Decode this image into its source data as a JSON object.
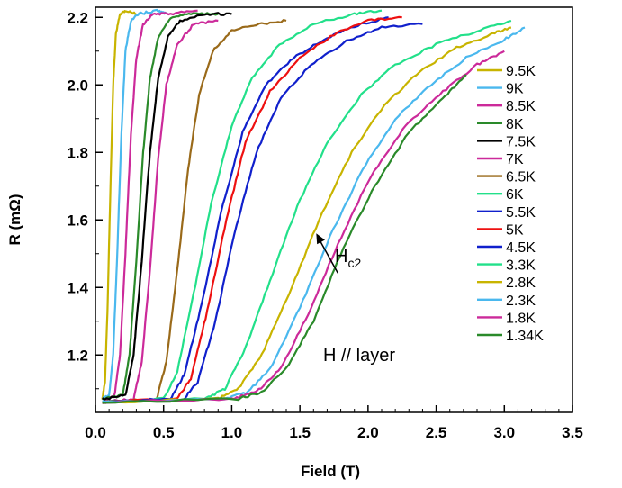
{
  "chart_data": {
    "type": "line",
    "title": "",
    "xlabel": "Field (T)",
    "ylabel": "R (mΩ)",
    "xlim": [
      0.0,
      3.5
    ],
    "ylim": [
      1.03,
      2.23
    ],
    "x_ticks": [
      "0.0",
      "0.5",
      "1.0",
      "1.5",
      "2.0",
      "2.5",
      "3.0",
      "3.5"
    ],
    "y_ticks": [
      "1.2",
      "1.4",
      "1.6",
      "1.8",
      "2.0",
      "2.2"
    ],
    "grid": false,
    "legend_position": "right",
    "annotations": {
      "hc2_label": "H",
      "hc2_sub": "c2",
      "hc2_point": [
        1.62,
        1.56
      ],
      "geometry_label": "H // layer"
    },
    "series": [
      {
        "name": "9.5K",
        "color": "#c8b400",
        "x": [
          0.05,
          0.07,
          0.09,
          0.11,
          0.13,
          0.15,
          0.18,
          0.22,
          0.3
        ],
        "y": [
          1.07,
          1.12,
          1.35,
          1.7,
          2.0,
          2.15,
          2.21,
          2.22,
          2.21
        ]
      },
      {
        "name": "9K",
        "color": "#4ab8ee",
        "x": [
          0.05,
          0.1,
          0.13,
          0.16,
          0.19,
          0.22,
          0.26,
          0.32,
          0.45,
          0.52
        ],
        "y": [
          1.07,
          1.08,
          1.2,
          1.5,
          1.85,
          2.1,
          2.19,
          2.21,
          2.22,
          2.21
        ]
      },
      {
        "name": "8.5K",
        "color": "#cc2a9a",
        "x": [
          0.05,
          0.14,
          0.18,
          0.22,
          0.26,
          0.3,
          0.35,
          0.42,
          0.55,
          0.75
        ],
        "y": [
          1.06,
          1.08,
          1.2,
          1.5,
          1.85,
          2.08,
          2.18,
          2.21,
          2.21,
          2.22
        ]
      },
      {
        "name": "8K",
        "color": "#2a8a2a",
        "x": [
          0.05,
          0.2,
          0.25,
          0.3,
          0.35,
          0.4,
          0.46,
          0.55,
          0.7,
          0.9
        ],
        "y": [
          1.07,
          1.08,
          1.2,
          1.48,
          1.8,
          2.02,
          2.14,
          2.2,
          2.21,
          2.21
        ]
      },
      {
        "name": "7.5K",
        "color": "#000000",
        "x": [
          0.05,
          0.22,
          0.28,
          0.34,
          0.4,
          0.46,
          0.53,
          0.62,
          0.8,
          1.0
        ],
        "y": [
          1.07,
          1.08,
          1.2,
          1.48,
          1.8,
          2.02,
          2.14,
          2.19,
          2.21,
          2.21
        ]
      },
      {
        "name": "7K",
        "color": "#cc2a9a",
        "x": [
          0.05,
          0.28,
          0.34,
          0.4,
          0.46,
          0.52,
          0.6,
          0.72,
          0.9
        ],
        "y": [
          1.06,
          1.07,
          1.18,
          1.45,
          1.78,
          2.0,
          2.12,
          2.18,
          2.19
        ]
      },
      {
        "name": "6.5K",
        "color": "#9a6a1a",
        "x": [
          0.05,
          0.45,
          0.52,
          0.6,
          0.68,
          0.76,
          0.86,
          1.0,
          1.2,
          1.4
        ],
        "y": [
          1.06,
          1.07,
          1.18,
          1.45,
          1.75,
          1.97,
          2.1,
          2.16,
          2.18,
          2.19
        ]
      },
      {
        "name": "6K",
        "color": "#22e08a",
        "x": [
          0.05,
          0.5,
          0.6,
          0.72,
          0.85,
          1.0,
          1.15,
          1.35,
          1.6,
          1.9,
          2.1
        ],
        "y": [
          1.06,
          1.07,
          1.15,
          1.38,
          1.65,
          1.88,
          2.02,
          2.12,
          2.18,
          2.21,
          2.22
        ]
      },
      {
        "name": "5.5K",
        "color": "#1020cc",
        "x": [
          0.05,
          0.55,
          0.65,
          0.78,
          0.92,
          1.08,
          1.25,
          1.45,
          1.7,
          1.95,
          2.15
        ],
        "y": [
          1.06,
          1.07,
          1.14,
          1.35,
          1.62,
          1.86,
          2.0,
          2.08,
          2.14,
          2.18,
          2.2
        ]
      },
      {
        "name": "5K",
        "color": "#ee1010",
        "x": [
          0.05,
          0.6,
          0.7,
          0.82,
          0.96,
          1.1,
          1.28,
          1.5,
          1.75,
          2.0,
          2.25
        ],
        "y": [
          1.06,
          1.07,
          1.13,
          1.33,
          1.6,
          1.83,
          1.98,
          2.08,
          2.15,
          2.19,
          2.2
        ]
      },
      {
        "name": "4.5K",
        "color": "#1020cc",
        "x": [
          0.05,
          0.65,
          0.75,
          0.88,
          1.02,
          1.18,
          1.36,
          1.58,
          1.84,
          2.1,
          2.4
        ],
        "y": [
          1.06,
          1.07,
          1.12,
          1.3,
          1.56,
          1.8,
          1.96,
          2.06,
          2.13,
          2.17,
          2.18
        ]
      },
      {
        "name": "3.3K",
        "color": "#22e08a",
        "x": [
          0.05,
          0.8,
          0.95,
          1.1,
          1.28,
          1.48,
          1.7,
          1.95,
          2.2,
          2.5,
          2.8,
          3.05
        ],
        "y": [
          1.06,
          1.07,
          1.1,
          1.22,
          1.42,
          1.64,
          1.83,
          1.97,
          2.06,
          2.12,
          2.16,
          2.19
        ]
      },
      {
        "name": "2.8K",
        "color": "#c8b400",
        "x": [
          0.05,
          0.9,
          1.05,
          1.22,
          1.42,
          1.64,
          1.88,
          2.12,
          2.38,
          2.65,
          2.9,
          3.05
        ],
        "y": [
          1.06,
          1.07,
          1.1,
          1.2,
          1.38,
          1.6,
          1.8,
          1.94,
          2.04,
          2.11,
          2.15,
          2.17
        ]
      },
      {
        "name": "2.3K",
        "color": "#4ab8ee",
        "x": [
          0.05,
          0.95,
          1.12,
          1.3,
          1.5,
          1.72,
          1.96,
          2.2,
          2.46,
          2.72,
          2.98,
          3.15
        ],
        "y": [
          1.06,
          1.07,
          1.09,
          1.17,
          1.34,
          1.55,
          1.75,
          1.9,
          2.0,
          2.08,
          2.13,
          2.17
        ]
      },
      {
        "name": "1.8K",
        "color": "#cc2a9a",
        "x": [
          0.05,
          1.0,
          1.18,
          1.36,
          1.56,
          1.78,
          2.02,
          2.28,
          2.55,
          2.8,
          3.0
        ],
        "y": [
          1.06,
          1.07,
          1.09,
          1.16,
          1.32,
          1.53,
          1.73,
          1.88,
          1.98,
          2.06,
          2.1
        ]
      },
      {
        "name": "1.34K",
        "color": "#2a8a2a",
        "x": [
          0.05,
          1.05,
          1.22,
          1.4,
          1.6,
          1.82,
          2.05,
          2.3,
          2.55,
          2.72
        ],
        "y": [
          1.06,
          1.07,
          1.09,
          1.16,
          1.3,
          1.52,
          1.7,
          1.86,
          1.96,
          2.03
        ]
      }
    ]
  }
}
